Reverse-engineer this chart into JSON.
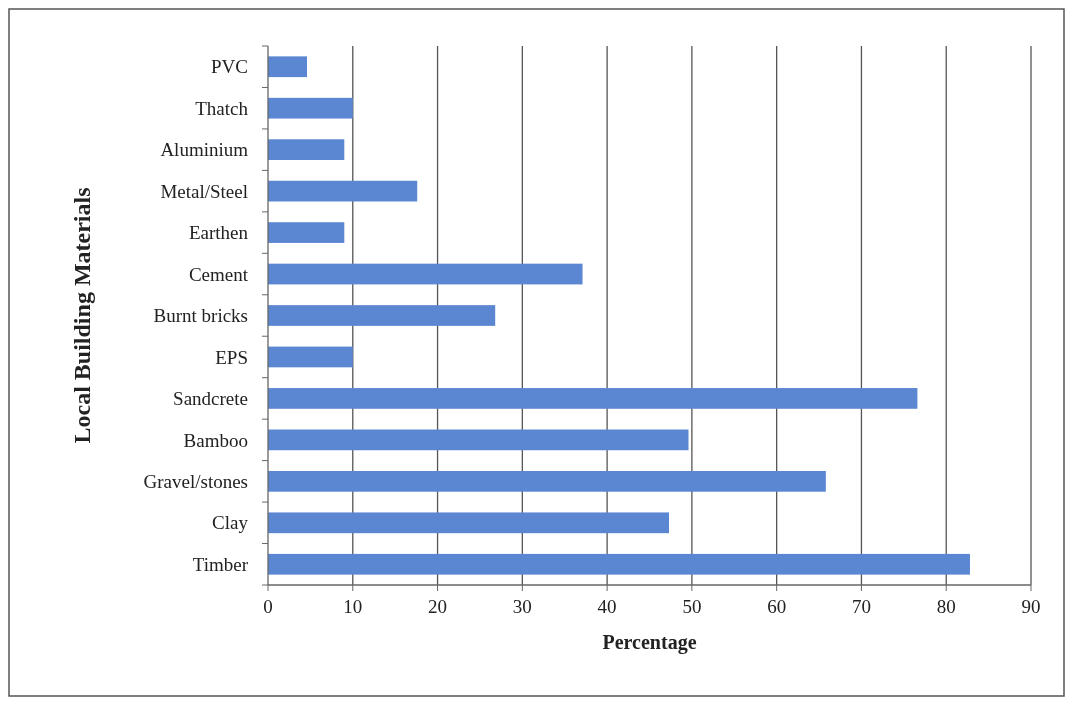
{
  "chart_data": {
    "type": "bar",
    "orientation": "horizontal",
    "xlabel": "Percentage",
    "ylabel": "Local Building Materials",
    "categories": [
      "PVC",
      "Thatch",
      "Aluminium",
      "Metal/Steel",
      "Earthen",
      "Cement",
      "Burnt bricks",
      "EPS",
      "Sandcrete",
      "Bamboo",
      "Gravel/stones",
      "Clay",
      "Timber"
    ],
    "values": [
      4.6,
      10,
      9,
      17.6,
      9,
      37.1,
      26.8,
      10,
      76.6,
      49.6,
      65.8,
      47.3,
      82.8
    ],
    "color": "#5b87d2",
    "xlim": [
      0,
      90
    ],
    "xticks": [
      0,
      10,
      20,
      30,
      40,
      50,
      60,
      70,
      80,
      90
    ],
    "grid": "x"
  }
}
